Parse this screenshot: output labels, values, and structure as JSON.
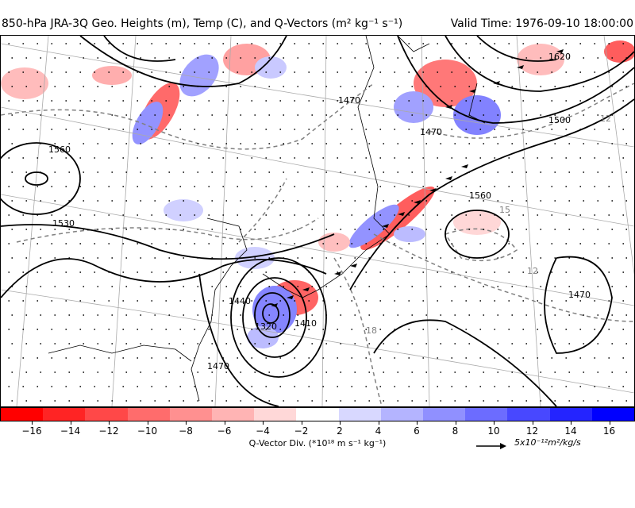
{
  "title": {
    "left": "850-hPa JRA-3Q Geo. Heights (m), Temp (C), and Q-Vectors (m² kg⁻¹ s⁻¹)",
    "right": "Valid Time: 1976-09-10 18:00:00"
  },
  "height_labels": [
    "1560",
    "1530",
    "1470",
    "1440",
    "1410",
    "1320",
    "1470",
    "1560",
    "1470",
    "1500",
    "1620",
    "1470"
  ],
  "temp_labels": [
    "15",
    "12",
    "12",
    "18"
  ],
  "colorbar": {
    "ticks": [
      "−16",
      "−14",
      "−12",
      "−10",
      "−8",
      "−6",
      "−4",
      "−2",
      "2",
      "4",
      "6",
      "8",
      "10",
      "12",
      "14",
      "16"
    ],
    "label": "Q-Vector Div. (*10¹⁸ m s⁻¹ kg⁻¹)",
    "colors": [
      "#ff0000",
      "#ff2424",
      "#ff4848",
      "#ff6c6c",
      "#ff9090",
      "#ffb4b4",
      "#ffd8d8",
      "#ffffff",
      "#d8d8ff",
      "#b4b4ff",
      "#9090ff",
      "#6c6cff",
      "#4848ff",
      "#2424ff",
      "#0000ff"
    ]
  },
  "reference_vector": {
    "label": "5x10⁻¹²m²/kg/s"
  }
}
